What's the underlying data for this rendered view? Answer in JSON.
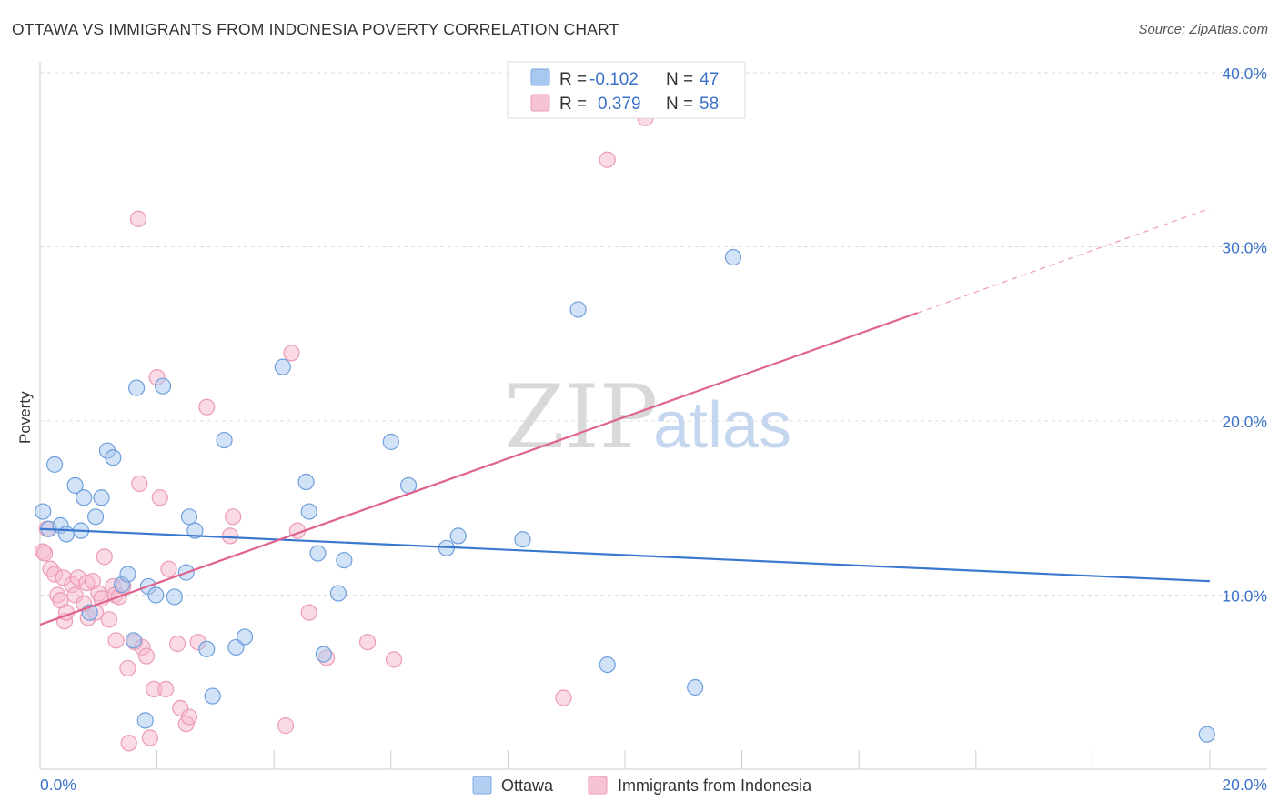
{
  "header": {
    "title": "OTTAWA VS IMMIGRANTS FROM INDONESIA POVERTY CORRELATION CHART",
    "source": "Source: ZipAtlas.com"
  },
  "watermark": {
    "part1": "ZIP",
    "part2": "atlas"
  },
  "legend": {
    "rows": [
      {
        "r_label": "R =",
        "r_value": "-0.102",
        "n_label": "N =",
        "n_value": "47",
        "color": "#a8c8f0"
      },
      {
        "r_label": "R =",
        "r_value": "0.379",
        "n_label": "N =",
        "n_value": "58",
        "color": "#f6b8cc"
      }
    ]
  },
  "bottom_legend": [
    {
      "label": "Ottawa",
      "color": "#a8c8f0"
    },
    {
      "label": "Immigrants from Indonesia",
      "color": "#f6b8cc"
    }
  ],
  "chart_data": {
    "type": "scatter",
    "title": "OTTAWA VS IMMIGRANTS FROM INDONESIA POVERTY CORRELATION CHART",
    "ylabel": "Poverty",
    "xlabel": "",
    "xlim": [
      0,
      20
    ],
    "ylim": [
      0,
      40
    ],
    "x_ticks": [
      "0.0%",
      "20.0%"
    ],
    "y_ticks": [
      {
        "v": 10,
        "label": "10.0%"
      },
      {
        "v": 20,
        "label": "20.0%"
      },
      {
        "v": 30,
        "label": "30.0%"
      },
      {
        "v": 40,
        "label": "40.0%"
      }
    ],
    "grid": true,
    "legend_position": "top-center",
    "colors": {
      "ottawa": "#3a78d0",
      "indonesia": "#e0628e"
    },
    "series": [
      {
        "name": "Ottawa",
        "trend": {
          "x0": 0,
          "y0": 13.8,
          "x1": 20,
          "y1": 10.8
        },
        "points": [
          [
            0.05,
            14.8
          ],
          [
            0.15,
            13.8
          ],
          [
            0.25,
            17.5
          ],
          [
            0.35,
            14.0
          ],
          [
            0.45,
            13.5
          ],
          [
            0.6,
            16.3
          ],
          [
            0.7,
            13.7
          ],
          [
            0.75,
            15.6
          ],
          [
            0.85,
            9.0
          ],
          [
            0.95,
            14.5
          ],
          [
            1.05,
            15.6
          ],
          [
            1.15,
            18.3
          ],
          [
            1.25,
            17.9
          ],
          [
            1.4,
            10.6
          ],
          [
            1.5,
            11.2
          ],
          [
            1.6,
            7.4
          ],
          [
            1.65,
            21.9
          ],
          [
            1.8,
            2.8
          ],
          [
            1.85,
            10.5
          ],
          [
            1.98,
            10.0
          ],
          [
            2.1,
            22.0
          ],
          [
            2.3,
            9.9
          ],
          [
            2.5,
            11.3
          ],
          [
            2.55,
            14.5
          ],
          [
            2.65,
            13.7
          ],
          [
            2.85,
            6.9
          ],
          [
            2.95,
            4.2
          ],
          [
            3.15,
            18.9
          ],
          [
            3.35,
            7.0
          ],
          [
            3.5,
            7.6
          ],
          [
            4.15,
            23.1
          ],
          [
            4.55,
            16.5
          ],
          [
            4.6,
            14.8
          ],
          [
            4.75,
            12.4
          ],
          [
            4.85,
            6.6
          ],
          [
            5.1,
            10.1
          ],
          [
            5.2,
            12.0
          ],
          [
            6.0,
            18.8
          ],
          [
            6.3,
            16.3
          ],
          [
            6.95,
            12.7
          ],
          [
            7.15,
            13.4
          ],
          [
            8.25,
            13.2
          ],
          [
            9.2,
            26.4
          ],
          [
            9.7,
            6.0
          ],
          [
            11.2,
            4.7
          ],
          [
            11.85,
            29.4
          ],
          [
            19.95,
            2.0
          ]
        ]
      },
      {
        "name": "Immigrants from Indonesia",
        "trend": {
          "x0": 0,
          "y0": 8.3,
          "x1": 15.0,
          "y1": 26.2,
          "dash_x1": 20,
          "dash_y1": 32.2
        },
        "points": [
          [
            0.05,
            12.5
          ],
          [
            0.12,
            13.8
          ],
          [
            0.18,
            11.5
          ],
          [
            0.25,
            11.2
          ],
          [
            0.3,
            10.0
          ],
          [
            0.35,
            9.7
          ],
          [
            0.4,
            11.0
          ],
          [
            0.42,
            8.5
          ],
          [
            0.45,
            9.0
          ],
          [
            0.55,
            10.6
          ],
          [
            0.6,
            10.0
          ],
          [
            0.65,
            11.0
          ],
          [
            0.75,
            9.5
          ],
          [
            0.8,
            10.7
          ],
          [
            0.82,
            8.7
          ],
          [
            0.9,
            10.8
          ],
          [
            0.95,
            9.0
          ],
          [
            1.0,
            10.1
          ],
          [
            1.05,
            9.8
          ],
          [
            1.1,
            12.2
          ],
          [
            1.18,
            8.6
          ],
          [
            1.25,
            10.5
          ],
          [
            1.28,
            10.0
          ],
          [
            1.3,
            7.4
          ],
          [
            1.35,
            9.9
          ],
          [
            1.42,
            10.5
          ],
          [
            1.5,
            5.8
          ],
          [
            1.52,
            1.5
          ],
          [
            1.62,
            7.3
          ],
          [
            1.68,
            31.6
          ],
          [
            1.7,
            16.4
          ],
          [
            1.75,
            7.0
          ],
          [
            1.82,
            6.5
          ],
          [
            1.88,
            1.8
          ],
          [
            1.95,
            4.6
          ],
          [
            2.0,
            22.5
          ],
          [
            2.05,
            15.6
          ],
          [
            2.15,
            4.6
          ],
          [
            2.2,
            11.5
          ],
          [
            2.35,
            7.2
          ],
          [
            2.4,
            3.5
          ],
          [
            2.5,
            2.6
          ],
          [
            2.55,
            3.0
          ],
          [
            2.7,
            7.3
          ],
          [
            2.85,
            20.8
          ],
          [
            3.25,
            13.4
          ],
          [
            3.3,
            14.5
          ],
          [
            4.2,
            2.5
          ],
          [
            4.3,
            23.9
          ],
          [
            4.4,
            13.7
          ],
          [
            4.6,
            9.0
          ],
          [
            4.9,
            6.4
          ],
          [
            5.6,
            7.3
          ],
          [
            6.05,
            6.3
          ],
          [
            8.95,
            4.1
          ],
          [
            9.7,
            35.0
          ],
          [
            10.35,
            37.4
          ],
          [
            0.08,
            12.4
          ]
        ]
      }
    ]
  }
}
